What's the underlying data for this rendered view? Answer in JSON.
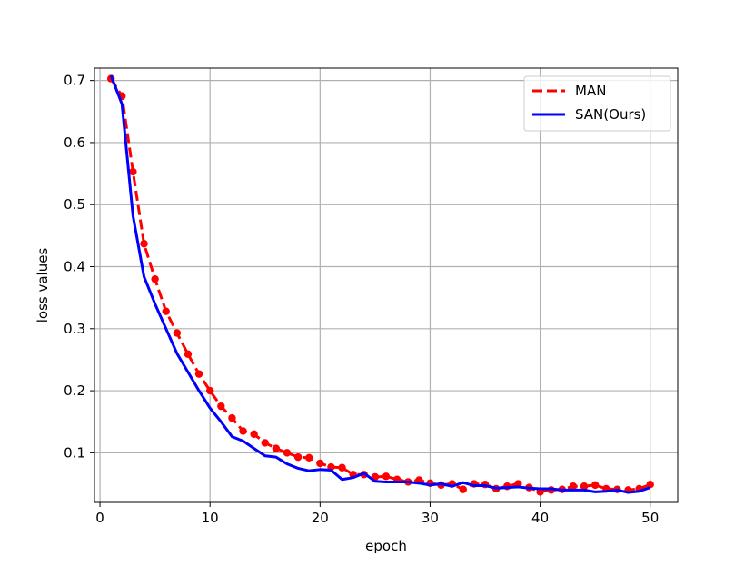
{
  "chart_data": {
    "type": "line",
    "xlabel": "epoch",
    "ylabel": "loss values",
    "xlim": [
      -0.5,
      52.5
    ],
    "ylim": [
      0.02,
      0.72
    ],
    "xticks": [
      0,
      10,
      20,
      30,
      40,
      50
    ],
    "yticks": [
      0.1,
      0.2,
      0.3,
      0.4,
      0.5,
      0.6,
      0.7
    ],
    "xtick_labels": [
      "0",
      "10",
      "20",
      "30",
      "40",
      "50"
    ],
    "ytick_labels": [
      "0.1",
      "0.2",
      "0.3",
      "0.4",
      "0.5",
      "0.6",
      "0.7"
    ],
    "grid": true,
    "legend_position": "top-right",
    "x": [
      1,
      2,
      3,
      4,
      5,
      6,
      7,
      8,
      9,
      10,
      11,
      12,
      13,
      14,
      15,
      16,
      17,
      18,
      19,
      20,
      21,
      22,
      23,
      24,
      25,
      26,
      27,
      28,
      29,
      30,
      31,
      32,
      33,
      34,
      35,
      36,
      37,
      38,
      39,
      40,
      41,
      42,
      43,
      44,
      45,
      46,
      47,
      48,
      49,
      50
    ],
    "series": [
      {
        "name": "MAN",
        "color": "#ff0000",
        "style": "dashed-with-markers",
        "values": [
          0.703,
          0.675,
          0.553,
          0.437,
          0.38,
          0.328,
          0.293,
          0.259,
          0.227,
          0.2,
          0.175,
          0.156,
          0.135,
          0.13,
          0.116,
          0.107,
          0.1,
          0.093,
          0.092,
          0.083,
          0.077,
          0.076,
          0.065,
          0.065,
          0.061,
          0.062,
          0.057,
          0.053,
          0.056,
          0.051,
          0.048,
          0.05,
          0.041,
          0.05,
          0.049,
          0.042,
          0.046,
          0.05,
          0.044,
          0.037,
          0.04,
          0.041,
          0.046,
          0.046,
          0.048,
          0.042,
          0.041,
          0.04,
          0.042,
          0.049
        ]
      },
      {
        "name": "SAN(Ours)",
        "color": "#0000ff",
        "style": "solid",
        "values": [
          0.708,
          0.662,
          0.482,
          0.384,
          0.34,
          0.3,
          0.26,
          0.23,
          0.2,
          0.172,
          0.15,
          0.126,
          0.119,
          0.107,
          0.095,
          0.093,
          0.082,
          0.075,
          0.071,
          0.073,
          0.072,
          0.057,
          0.06,
          0.067,
          0.054,
          0.053,
          0.053,
          0.053,
          0.051,
          0.048,
          0.05,
          0.046,
          0.052,
          0.047,
          0.047,
          0.043,
          0.044,
          0.045,
          0.043,
          0.042,
          0.042,
          0.04,
          0.04,
          0.04,
          0.037,
          0.038,
          0.04,
          0.036,
          0.038,
          0.044
        ]
      }
    ]
  }
}
